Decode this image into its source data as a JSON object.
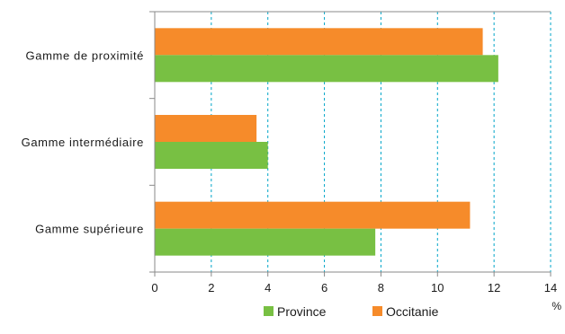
{
  "chart_data": {
    "type": "bar",
    "orientation": "horizontal",
    "categories": [
      "Gamme de proximité",
      "Gamme intermédiaire",
      "Gamme supérieure"
    ],
    "series": [
      {
        "name": "Occitanie",
        "color": "#f68b2a",
        "values": [
          11.6,
          3.6,
          11.15
        ]
      },
      {
        "name": "Province",
        "color": "#78c043",
        "values": [
          12.15,
          4.0,
          7.8
        ]
      }
    ],
    "legend_order": [
      "Province",
      "Occitanie"
    ],
    "legend_position": "bottom",
    "xlim": [
      0,
      14
    ],
    "x_ticks": [
      "0",
      "2",
      "4",
      "6",
      "8",
      "10",
      "12",
      "14"
    ],
    "x_unit": "%",
    "grid": {
      "vertical": true,
      "style": "dashed",
      "color": "#00a5c8"
    }
  }
}
